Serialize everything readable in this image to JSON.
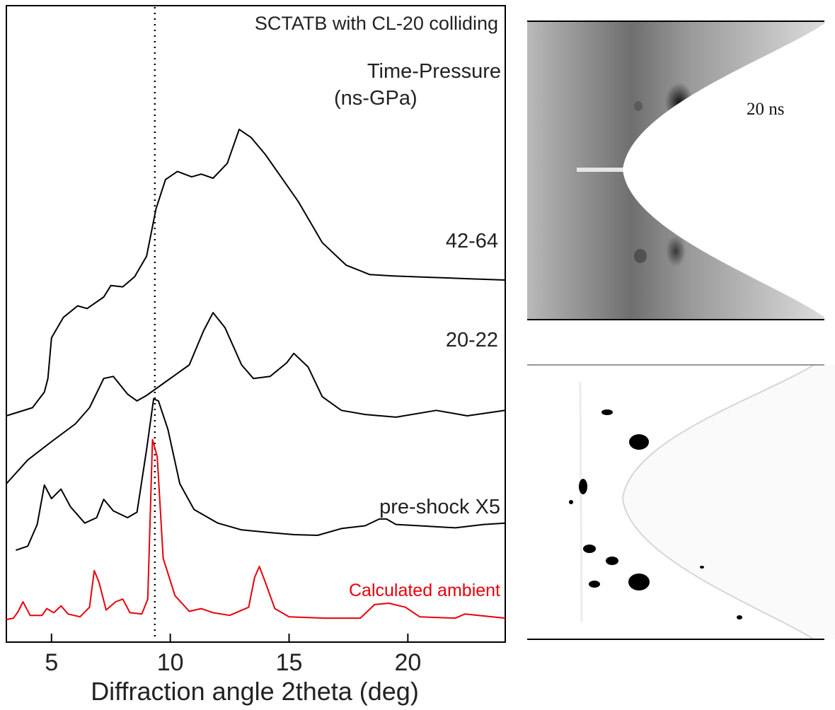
{
  "chart_data": {
    "type": "line",
    "title": "SCTATB with CL-20 colliding",
    "legend_title": [
      "Time-Pressure",
      "(ns-GPa)"
    ],
    "xlabel": "Diffraction angle 2theta (deg)",
    "ylabel": "",
    "xlim": [
      3.1,
      24.1
    ],
    "x_ticks": [
      5,
      10,
      15,
      20
    ],
    "x_tick_labels": [
      "5",
      "10",
      "15",
      "20"
    ],
    "reference_line_x": 9.35,
    "y_axis_shown": false,
    "series": [
      {
        "name": "42-64",
        "color": "#000000",
        "offset": 3.0,
        "points": [
          [
            3.1,
            0.0
          ],
          [
            4.2,
            0.12
          ],
          [
            4.7,
            0.35
          ],
          [
            4.85,
            0.55
          ],
          [
            5.0,
            1.15
          ],
          [
            5.5,
            1.45
          ],
          [
            6.1,
            1.62
          ],
          [
            6.5,
            1.58
          ],
          [
            7.2,
            1.75
          ],
          [
            7.5,
            1.92
          ],
          [
            8.0,
            1.9
          ],
          [
            8.5,
            2.05
          ],
          [
            9.0,
            2.35
          ],
          [
            9.4,
            3.05
          ],
          [
            9.8,
            3.48
          ],
          [
            10.3,
            3.6
          ],
          [
            10.9,
            3.52
          ],
          [
            11.3,
            3.56
          ],
          [
            11.8,
            3.5
          ],
          [
            12.4,
            3.72
          ],
          [
            12.9,
            4.22
          ],
          [
            13.4,
            4.1
          ],
          [
            14.0,
            3.85
          ],
          [
            14.6,
            3.55
          ],
          [
            15.4,
            3.15
          ],
          [
            16.4,
            2.55
          ],
          [
            17.4,
            2.22
          ],
          [
            18.4,
            2.08
          ],
          [
            19.4,
            2.06
          ],
          [
            21.0,
            2.04
          ],
          [
            22.5,
            2.02
          ],
          [
            24.1,
            2.0
          ]
        ]
      },
      {
        "name": "20-22",
        "color": "#000000",
        "offset": 2.0,
        "points": [
          [
            3.1,
            0.0
          ],
          [
            4.0,
            0.35
          ],
          [
            5.0,
            0.62
          ],
          [
            6.0,
            0.88
          ],
          [
            6.6,
            1.12
          ],
          [
            7.2,
            1.55
          ],
          [
            7.6,
            1.58
          ],
          [
            8.2,
            1.32
          ],
          [
            8.6,
            1.22
          ],
          [
            9.0,
            1.3
          ],
          [
            9.8,
            1.5
          ],
          [
            10.8,
            1.75
          ],
          [
            11.4,
            2.25
          ],
          [
            11.8,
            2.52
          ],
          [
            12.3,
            2.3
          ],
          [
            13.0,
            1.75
          ],
          [
            13.5,
            1.55
          ],
          [
            14.2,
            1.58
          ],
          [
            14.9,
            1.78
          ],
          [
            15.2,
            1.92
          ],
          [
            15.8,
            1.72
          ],
          [
            16.4,
            1.28
          ],
          [
            17.2,
            1.08
          ],
          [
            18.2,
            1.02
          ],
          [
            19.5,
            0.98
          ],
          [
            21.2,
            1.08
          ],
          [
            22.5,
            1.0
          ],
          [
            24.1,
            1.08
          ]
        ]
      },
      {
        "name": "pre-shock X5",
        "color": "#000000",
        "offset": 1.0,
        "points": [
          [
            3.5,
            0.02
          ],
          [
            4.0,
            0.08
          ],
          [
            4.4,
            0.4
          ],
          [
            4.7,
            0.98
          ],
          [
            5.0,
            0.78
          ],
          [
            5.4,
            0.92
          ],
          [
            5.8,
            0.66
          ],
          [
            6.4,
            0.42
          ],
          [
            6.9,
            0.5
          ],
          [
            7.2,
            0.77
          ],
          [
            7.6,
            0.6
          ],
          [
            8.2,
            0.5
          ],
          [
            8.6,
            0.58
          ],
          [
            9.0,
            1.5
          ],
          [
            9.3,
            2.25
          ],
          [
            9.5,
            2.22
          ],
          [
            9.9,
            1.8
          ],
          [
            10.4,
            1.0
          ],
          [
            11.0,
            0.62
          ],
          [
            12.0,
            0.42
          ],
          [
            13.0,
            0.32
          ],
          [
            14.2,
            0.28
          ],
          [
            15.2,
            0.25
          ],
          [
            16.2,
            0.24
          ],
          [
            17.2,
            0.34
          ],
          [
            18.2,
            0.38
          ],
          [
            18.8,
            0.48
          ],
          [
            19.1,
            0.48
          ],
          [
            19.5,
            0.4
          ],
          [
            20.5,
            0.38
          ],
          [
            22.0,
            0.35
          ],
          [
            23.2,
            0.4
          ],
          [
            24.1,
            0.42
          ]
        ]
      },
      {
        "name": "Calculated ambient",
        "color": "#e8000b",
        "offset": 0.0,
        "points": [
          [
            3.1,
            0.0
          ],
          [
            3.4,
            0.02
          ],
          [
            3.6,
            0.12
          ],
          [
            3.8,
            0.26
          ],
          [
            4.1,
            0.06
          ],
          [
            4.6,
            0.06
          ],
          [
            4.8,
            0.16
          ],
          [
            5.1,
            0.1
          ],
          [
            5.4,
            0.2
          ],
          [
            5.7,
            0.08
          ],
          [
            6.2,
            0.04
          ],
          [
            6.6,
            0.18
          ],
          [
            6.8,
            0.72
          ],
          [
            7.0,
            0.55
          ],
          [
            7.3,
            0.14
          ],
          [
            7.7,
            0.26
          ],
          [
            8.0,
            0.3
          ],
          [
            8.3,
            0.1
          ],
          [
            8.8,
            0.08
          ],
          [
            9.05,
            0.3
          ],
          [
            9.25,
            2.65
          ],
          [
            9.45,
            2.4
          ],
          [
            9.7,
            0.9
          ],
          [
            10.2,
            0.35
          ],
          [
            10.8,
            0.12
          ],
          [
            11.3,
            0.16
          ],
          [
            11.8,
            0.1
          ],
          [
            12.5,
            0.06
          ],
          [
            13.3,
            0.18
          ],
          [
            13.55,
            0.62
          ],
          [
            13.75,
            0.78
          ],
          [
            14.0,
            0.55
          ],
          [
            14.4,
            0.16
          ],
          [
            15.0,
            0.04
          ],
          [
            16.5,
            0.02
          ],
          [
            18.0,
            0.02
          ],
          [
            18.6,
            0.22
          ],
          [
            19.2,
            0.24
          ],
          [
            19.9,
            0.18
          ],
          [
            20.5,
            0.04
          ],
          [
            22.0,
            0.02
          ],
          [
            22.4,
            0.08
          ],
          [
            24.1,
            0.02
          ]
        ]
      }
    ]
  },
  "images": [
    {
      "caption": "20 ns",
      "style": "grey diffraction image with white hyperbolic shadow"
    },
    {
      "caption": "",
      "style": "white diffraction image with black spots and hyperbolic shadow"
    }
  ],
  "colors": {
    "axis": "#000000",
    "trace": "#000000",
    "calc": "#e8000b"
  }
}
